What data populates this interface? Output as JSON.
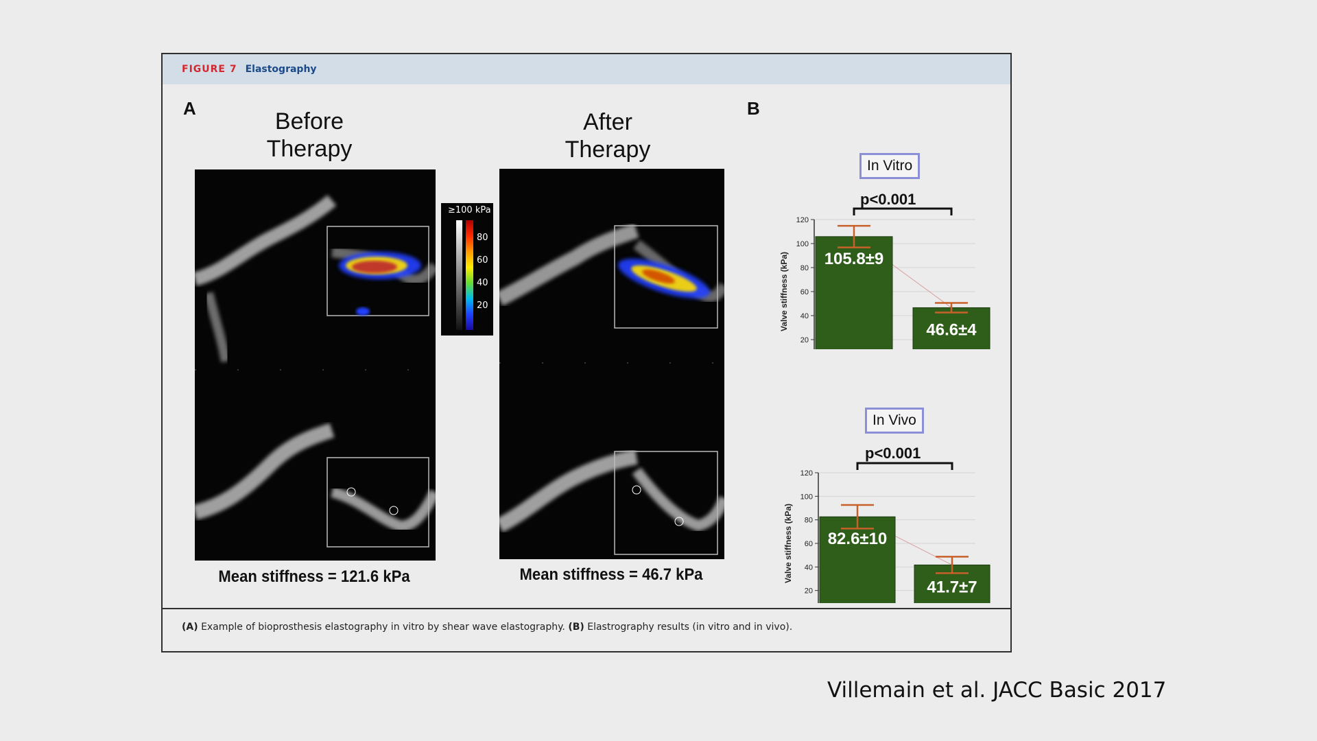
{
  "figure": {
    "number": "FIGURE 7",
    "title": "Elastography",
    "panel_a_letter": "A",
    "panel_b_letter": "B",
    "before_title": "Before\nTherapy",
    "after_title": "After\nTherapy",
    "colorbar": {
      "title": "≥100 kPa",
      "ticks": [
        "80",
        "60",
        "40",
        "20"
      ]
    },
    "before_stiffness": "Mean stiffness = 121.6 kPa",
    "after_stiffness": "Mean stiffness = 46.7 kPa",
    "caption_a_label": "(A)",
    "caption_a_text": " Example of bioprosthesis elastography in vitro by shear wave elastography. ",
    "caption_b_label": "(B)",
    "caption_b_text": " Elastrography results (in vitro and in vivo)."
  },
  "citation": "Villemain et al. JACC Basic 2017",
  "chart_data": [
    {
      "type": "bar",
      "title": "In Vitro",
      "annotation": "p<0.001",
      "categories": [
        "Before Therapy",
        "After Therapy"
      ],
      "values": [
        105.8,
        46.6
      ],
      "errors": [
        9,
        4
      ],
      "value_labels": [
        "105.8±9",
        "46.6±4"
      ],
      "ylabel": "Valve stiffness (kPa)",
      "ylim": [
        0,
        120
      ],
      "yticks": [
        "0",
        "20",
        "40",
        "60",
        "80",
        "100",
        "120"
      ],
      "bar_color": "#2e5e1a",
      "error_color": "#c8602a"
    },
    {
      "type": "bar",
      "title": "In Vivo",
      "annotation": "p<0.001",
      "categories": [
        "Before Therapy",
        "After Therapy"
      ],
      "values": [
        82.6,
        41.7
      ],
      "errors": [
        10,
        7
      ],
      "value_labels": [
        "82.6±10",
        "41.7±7"
      ],
      "ylabel": "Valve stiffness (kPa)",
      "ylim": [
        0,
        120
      ],
      "yticks": [
        "0",
        "20",
        "40",
        "60",
        "80",
        "100",
        "120"
      ],
      "bar_color": "#2e5e1a",
      "error_color": "#c8602a"
    }
  ]
}
